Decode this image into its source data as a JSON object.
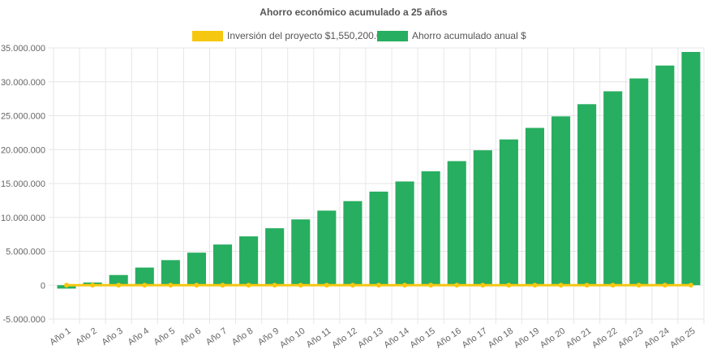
{
  "chart_data": {
    "type": "bar",
    "title": "Ahorro económico acumulado a 25 años",
    "categories": [
      "Año 1",
      "Año 2",
      "Año 3",
      "Año 4",
      "Año 5",
      "Año 6",
      "Año 7",
      "Año 8",
      "Año 9",
      "Año 10",
      "Año 11",
      "Año 12",
      "Año 13",
      "Año 14",
      "Año 15",
      "Año 16",
      "Año 17",
      "Año 18",
      "Año 19",
      "Año 20",
      "Año 21",
      "Año 22",
      "Año 23",
      "Año 24",
      "Año 25"
    ],
    "series": [
      {
        "name": "Inversión del proyecto $1,550,200.00",
        "type": "line",
        "color": "#f6c710",
        "values": [
          0,
          0,
          0,
          0,
          0,
          0,
          0,
          0,
          0,
          0,
          0,
          0,
          0,
          0,
          0,
          0,
          0,
          0,
          0,
          0,
          0,
          0,
          0,
          0,
          0
        ]
      },
      {
        "name": "Ahorro acumulado anual $",
        "type": "bar",
        "color": "#27ae60",
        "values": [
          -500000,
          400000,
          1500000,
          2600000,
          3700000,
          4800000,
          6000000,
          7200000,
          8400000,
          9700000,
          11000000,
          12400000,
          13800000,
          15300000,
          16800000,
          18300000,
          19900000,
          21500000,
          23200000,
          24900000,
          26700000,
          28600000,
          30500000,
          32400000,
          34400000
        ]
      }
    ],
    "ylim": [
      -5000000,
      35000000
    ],
    "yticks": [
      "35.000.000",
      "30.000.000",
      "25.000.000",
      "20.000.000",
      "15.000.000",
      "10.000.000",
      "5.000.000",
      "0",
      "-5.000.000"
    ],
    "ytick_values": [
      35000000,
      30000000,
      25000000,
      20000000,
      15000000,
      10000000,
      5000000,
      0,
      -5000000
    ],
    "grid": true,
    "legend_position": "top-center"
  }
}
